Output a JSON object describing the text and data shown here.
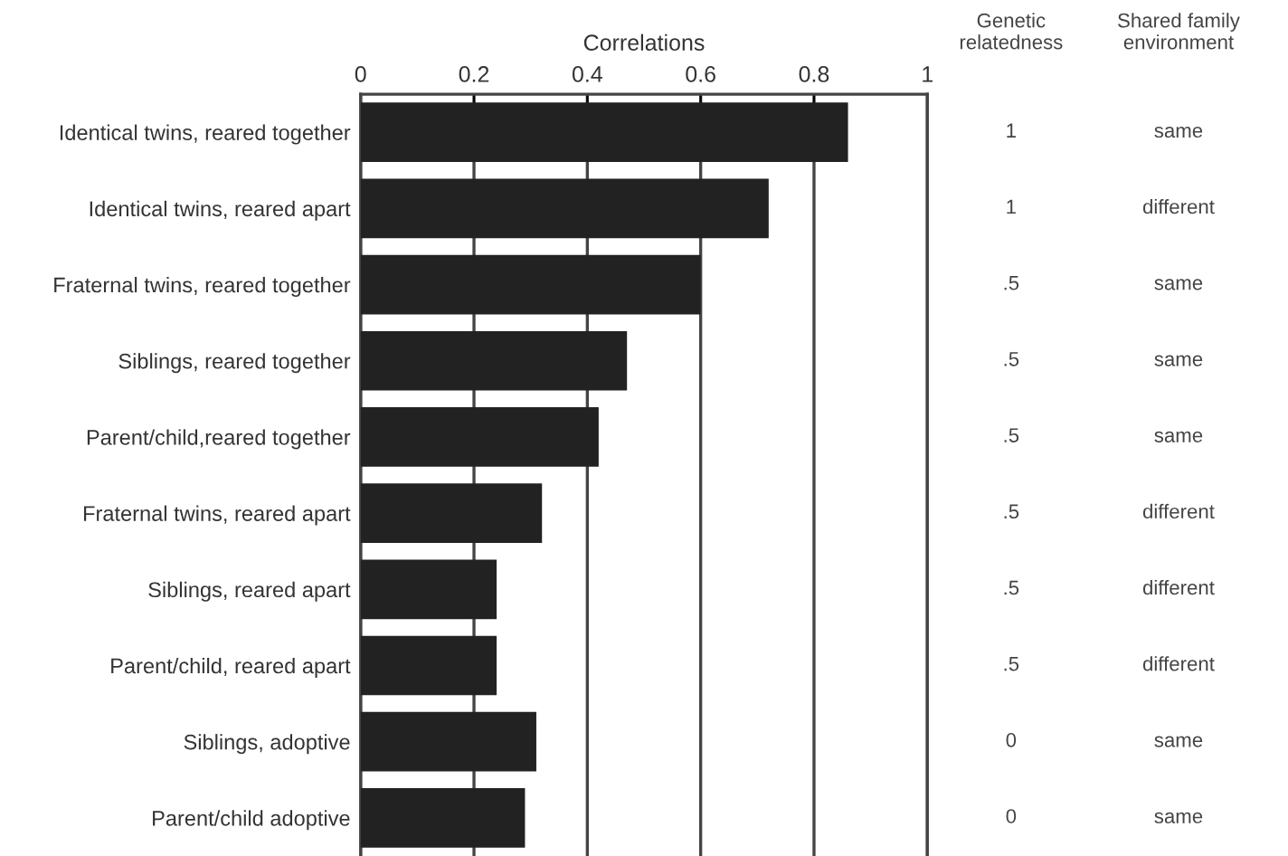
{
  "chart_data": {
    "type": "bar",
    "orientation": "horizontal",
    "xlabel": "Correlations",
    "categories": [
      "Identical twins, reared together",
      "Identical twins, reared apart",
      "Fraternal twins, reared together",
      "Siblings, reared together",
      "Parent/child,reared together",
      "Fraternal twins, reared apart",
      "Siblings, reared apart",
      "Parent/child, reared apart",
      "Siblings, adoptive",
      "Parent/child adoptive"
    ],
    "values": [
      0.86,
      0.72,
      0.6,
      0.47,
      0.42,
      0.32,
      0.24,
      0.24,
      0.31,
      0.29
    ],
    "color": "#222222",
    "xlim": [
      0,
      1
    ],
    "xticks": [
      0,
      0.2,
      0.4,
      0.6,
      0.8,
      1
    ],
    "grid": "x",
    "annotations": [
      "Genetic\nrelatedness",
      "Shared family\nenvironment",
      "1",
      "1",
      ".5",
      ".5",
      ".5",
      ".5",
      ".5",
      ".5",
      "0",
      "0",
      "same",
      "different",
      "same",
      "same",
      "same",
      "different",
      "different",
      "different",
      "same",
      "same"
    ]
  }
}
